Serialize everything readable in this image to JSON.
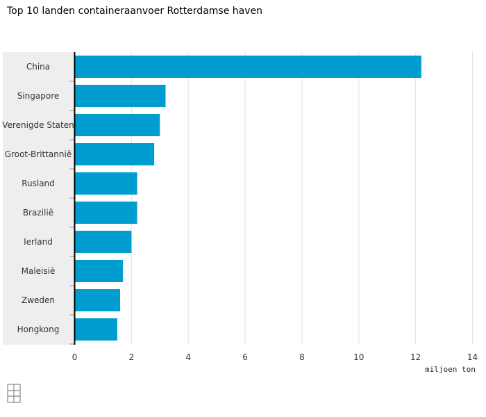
{
  "chart_data": {
    "type": "bar",
    "orientation": "horizontal",
    "title": "Top 10 landen containeraanvoer Rotterdamse haven",
    "categories": [
      "China",
      "Singapore",
      "Verenigde Staten",
      "Groot-Brittannië",
      "Rusland",
      "Brazilië",
      "Ierland",
      "Maleisië",
      "Zweden",
      "Hongkong"
    ],
    "values": [
      12.2,
      3.2,
      3.0,
      2.8,
      2.2,
      2.2,
      2.0,
      1.7,
      1.6,
      1.5
    ],
    "xlabel": "miljoen ton",
    "ylabel": "",
    "xlim": [
      0,
      14
    ],
    "xticks": [
      0,
      2,
      4,
      6,
      8,
      10,
      12,
      14
    ],
    "grid": "vertical",
    "legend": "none",
    "colors": {
      "bar": "#009ed0",
      "label_band": "#eeeeee",
      "gridline": "#e3e3e3",
      "axis": "#000000"
    }
  },
  "logo": {
    "text": "cbs"
  }
}
